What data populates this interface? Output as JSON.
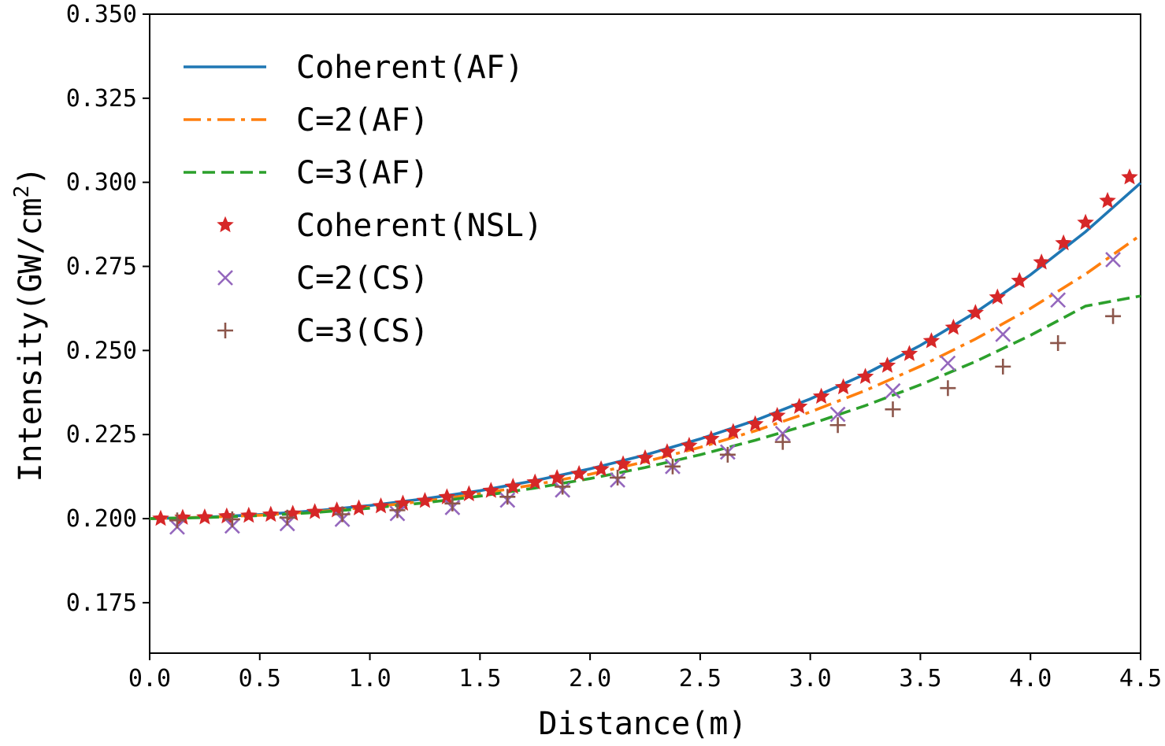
{
  "chart_data": {
    "type": "line",
    "title": "",
    "xlabel": "Distance(m)",
    "ylabel_main": "Intensity(GW/cm",
    "ylabel_sup": "2",
    "ylabel_tail": ")",
    "xlim": [
      0.0,
      4.5
    ],
    "ylim": [
      0.16,
      0.35
    ],
    "xticks": [
      0.0,
      0.5,
      1.0,
      1.5,
      2.0,
      2.5,
      3.0,
      3.5,
      4.0,
      4.5
    ],
    "xtick_labels": [
      "0.0",
      "0.5",
      "1.0",
      "1.5",
      "2.0",
      "2.5",
      "3.0",
      "3.5",
      "4.0",
      "4.5"
    ],
    "yticks": [
      0.175,
      0.2,
      0.225,
      0.25,
      0.275,
      0.3,
      0.325,
      0.35
    ],
    "ytick_labels": [
      "0.175",
      "0.200",
      "0.225",
      "0.250",
      "0.275",
      "0.300",
      "0.325",
      "0.350"
    ],
    "grid": false,
    "legend_position": "top-left",
    "series": [
      {
        "name": "Coherent(AF)",
        "kind": "line",
        "style": "solid",
        "color": "#1f77b4",
        "x": [
          0.0,
          0.25,
          0.5,
          0.75,
          1.0,
          1.25,
          1.5,
          1.75,
          2.0,
          2.25,
          2.5,
          2.75,
          3.0,
          3.25,
          3.5,
          3.75,
          4.0,
          4.25,
          4.5
        ],
        "y": [
          0.2,
          0.2004,
          0.2012,
          0.2023,
          0.2039,
          0.2059,
          0.2083,
          0.2113,
          0.2148,
          0.2189,
          0.2237,
          0.2292,
          0.2356,
          0.243,
          0.2515,
          0.2613,
          0.2725,
          0.2853,
          0.2998
        ]
      },
      {
        "name": "C=2(AF)",
        "kind": "line",
        "style": "dashdot",
        "color": "#ff7f0e",
        "x": [
          0.0,
          0.25,
          0.5,
          0.75,
          1.0,
          1.25,
          1.5,
          1.75,
          2.0,
          2.25,
          2.5,
          2.75,
          3.0,
          3.25,
          3.5,
          3.75,
          4.0,
          4.25,
          4.5
        ],
        "y": [
          0.2,
          0.2004,
          0.201,
          0.202,
          0.2034,
          0.2052,
          0.2074,
          0.2101,
          0.2132,
          0.2169,
          0.2212,
          0.2261,
          0.2317,
          0.2381,
          0.2453,
          0.2534,
          0.2625,
          0.2727,
          0.2843
        ]
      },
      {
        "name": "C=3(AF)",
        "kind": "line",
        "style": "dashed",
        "color": "#2ca02c",
        "x": [
          0.0,
          0.25,
          0.5,
          0.75,
          1.0,
          1.25,
          1.5,
          1.75,
          2.0,
          2.25,
          2.5,
          2.75,
          3.0,
          3.25,
          3.5,
          3.75,
          4.0,
          4.25,
          4.5
        ],
        "y": [
          0.2,
          0.2003,
          0.2009,
          0.2018,
          0.2031,
          0.2047,
          0.2067,
          0.2091,
          0.2119,
          0.2152,
          0.219,
          0.2233,
          0.2281,
          0.2336,
          0.2398,
          0.2467,
          0.2545,
          0.2632,
          0.2662
        ]
      },
      {
        "name": "Coherent(NSL)",
        "kind": "marker",
        "marker": "star",
        "color": "#d62728",
        "x": [
          0.05,
          0.15,
          0.25,
          0.35,
          0.45,
          0.55,
          0.65,
          0.75,
          0.85,
          0.95,
          1.05,
          1.15,
          1.25,
          1.35,
          1.45,
          1.55,
          1.65,
          1.75,
          1.85,
          1.95,
          2.05,
          2.15,
          2.25,
          2.35,
          2.45,
          2.55,
          2.65,
          2.75,
          2.85,
          2.95,
          3.05,
          3.15,
          3.25,
          3.35,
          3.45,
          3.55,
          3.65,
          3.75,
          3.85,
          3.95,
          4.05,
          4.15,
          4.25,
          4.35,
          4.45
        ],
        "y": [
          0.2,
          0.2003,
          0.2004,
          0.2007,
          0.2009,
          0.2012,
          0.2015,
          0.202,
          0.2025,
          0.2031,
          0.2037,
          0.2045,
          0.2053,
          0.2064,
          0.2073,
          0.2083,
          0.2095,
          0.2108,
          0.2121,
          0.2133,
          0.2147,
          0.2162,
          0.218,
          0.2198,
          0.2217,
          0.2237,
          0.2258,
          0.2281,
          0.2306,
          0.2333,
          0.2363,
          0.2391,
          0.2422,
          0.2455,
          0.249,
          0.2528,
          0.2568,
          0.2612,
          0.2658,
          0.2707,
          0.2762,
          0.2819,
          0.288,
          0.2945,
          0.3015
        ]
      },
      {
        "name": "C=2(CS)",
        "kind": "marker",
        "marker": "x",
        "color": "#9467bd",
        "x": [
          0.125,
          0.375,
          0.625,
          0.875,
          1.125,
          1.375,
          1.625,
          1.875,
          2.125,
          2.375,
          2.625,
          2.875,
          3.125,
          3.375,
          3.625,
          3.875,
          4.125,
          4.375
        ],
        "y": [
          0.1975,
          0.1978,
          0.1985,
          0.1998,
          0.2015,
          0.2033,
          0.2055,
          0.2085,
          0.2115,
          0.2155,
          0.2198,
          0.2253,
          0.231,
          0.238,
          0.2462,
          0.2548,
          0.265,
          0.277
        ]
      },
      {
        "name": "C=3(CS)",
        "kind": "marker",
        "marker": "plus",
        "color": "#8c564b",
        "x": [
          0.125,
          0.375,
          0.625,
          0.875,
          1.125,
          1.375,
          1.625,
          1.875,
          2.125,
          2.375,
          2.625,
          2.875,
          3.125,
          3.375,
          3.625,
          3.875,
          4.125,
          4.375
        ],
        "y": [
          0.1995,
          0.1998,
          0.2003,
          0.2013,
          0.2025,
          0.2045,
          0.2065,
          0.2095,
          0.2122,
          0.2155,
          0.219,
          0.2228,
          0.2278,
          0.2325,
          0.2388,
          0.2452,
          0.2522,
          0.2602
        ]
      }
    ]
  }
}
